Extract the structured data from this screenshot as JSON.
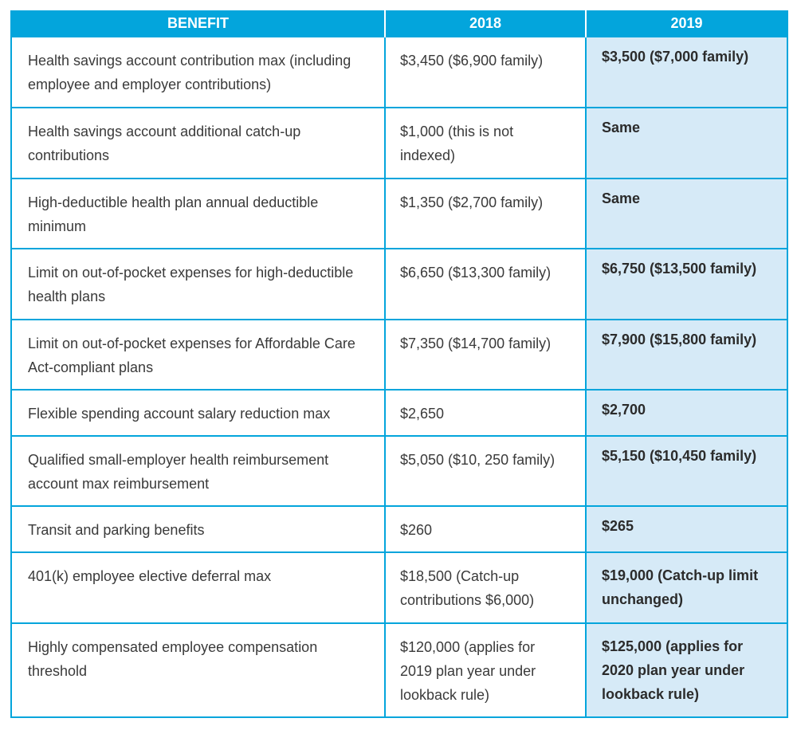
{
  "header": {
    "benefit": "BENEFIT",
    "year_2018": "2018",
    "year_2019": "2019"
  },
  "rows": [
    {
      "benefit": "Health savings account contribution max (including employee and employer contributions)",
      "y2018": "$3,450 ($6,900 family)",
      "y2019": "$3,500 ($7,000 family)"
    },
    {
      "benefit": "Health savings account additional catch-up contributions",
      "y2018": "$1,000 (this is not indexed)",
      "y2019": "Same"
    },
    {
      "benefit": "High-deductible health plan annual deductible minimum",
      "y2018": "$1,350 ($2,700 family)",
      "y2019": "Same"
    },
    {
      "benefit": "Limit on out-of-pocket expenses for high-deductible health plans",
      "y2018": "$6,650 ($13,300 family)",
      "y2019": "$6,750 ($13,500 family)"
    },
    {
      "benefit": "Limit on out-of-pocket expenses for Affordable Care Act-compliant plans",
      "y2018": "$7,350 ($14,700 family)",
      "y2019": "$7,900 ($15,800 family)"
    },
    {
      "benefit": "Flexible spending account salary reduction max",
      "y2018": "$2,650",
      "y2019": "$2,700"
    },
    {
      "benefit": "Qualified small-employer health reimbursement account max reimbursement",
      "y2018": "$5,050 ($10, 250 family)",
      "y2019": "$5,150 ($10,450 family)"
    },
    {
      "benefit": "Transit and parking benefits",
      "y2018": "$260",
      "y2019": "$265"
    },
    {
      "benefit": "401(k) employee elective deferral max",
      "y2018": "$18,500 (Catch-up contributions $6,000)",
      "y2019": "$19,000 (Catch-up limit unchanged)"
    },
    {
      "benefit": "Highly compensated employee compensation threshold",
      "y2018": "$120,000 (applies for 2019 plan year under lookback rule)",
      "y2019": "$125,000 (applies for 2020 plan year under lookback rule)"
    }
  ],
  "colors": {
    "header_bg": "#03a5dc",
    "border": "#03a5dc",
    "highlight_col_bg": "#d6eaf7"
  }
}
